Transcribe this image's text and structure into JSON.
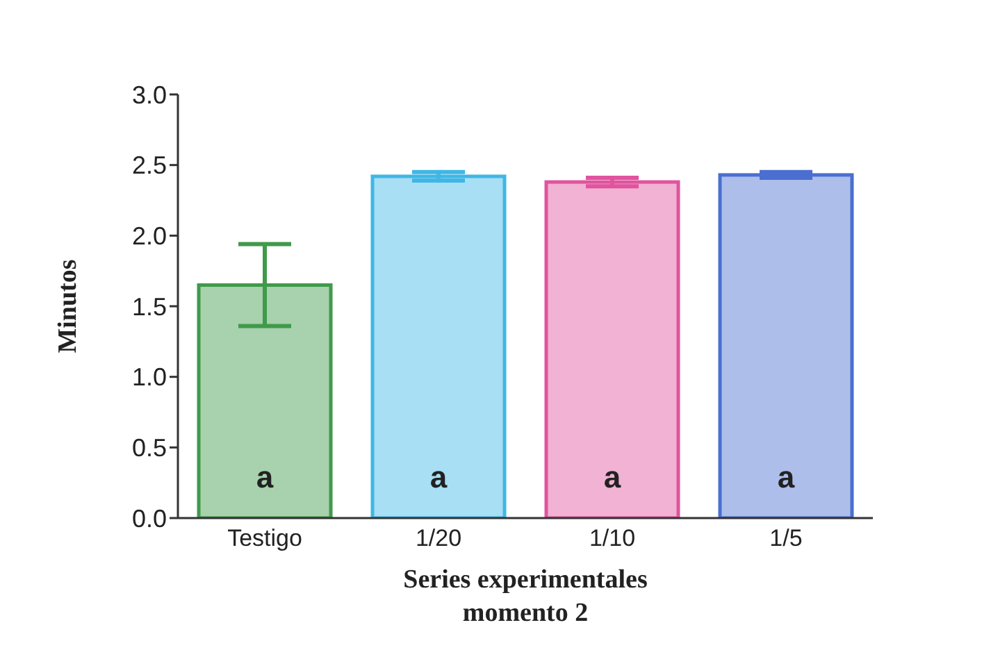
{
  "chart_data": {
    "type": "bar",
    "xlabel": "Series experimentales\nmomento 2",
    "ylabel": "Minutos",
    "categories": [
      "Testigo",
      "1/20",
      "1/10",
      "1/5"
    ],
    "values": [
      1.65,
      2.42,
      2.38,
      2.43
    ],
    "errors": [
      0.29,
      0.03,
      0.03,
      0.02
    ],
    "colors": [
      "#3f9a4a",
      "#3fb7e6",
      "#e0549e",
      "#4a6fd0"
    ],
    "ylim": [
      0,
      3.0
    ],
    "yticks": [
      {
        "value": 0,
        "label": "0.0"
      },
      {
        "value": 0.5,
        "label": "0.5"
      },
      {
        "value": 1,
        "label": "1.0"
      },
      {
        "value": 1.5,
        "label": "1.5"
      },
      {
        "value": 2,
        "label": "2.0"
      },
      {
        "value": 2.5,
        "label": "2.5"
      },
      {
        "value": 3,
        "label": "3.0"
      }
    ],
    "grid": false,
    "legend": false,
    "annotations": [
      "a",
      "a",
      "a",
      "a"
    ]
  }
}
